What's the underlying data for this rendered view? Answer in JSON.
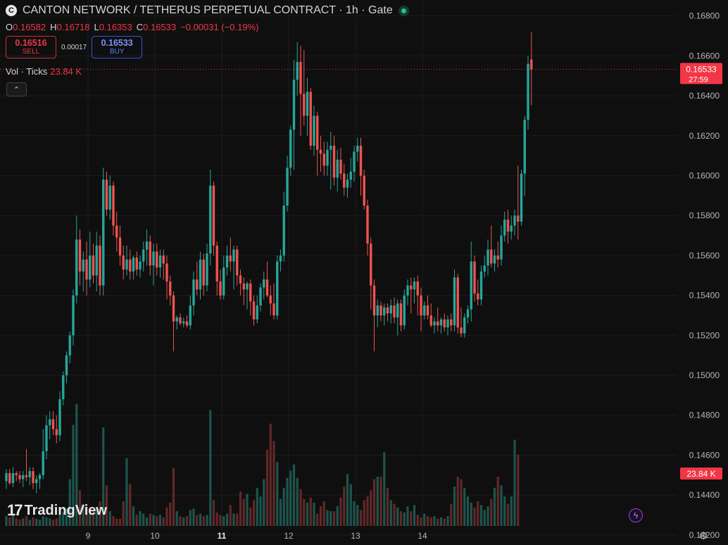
{
  "header": {
    "logo_letter": "C",
    "title": "CANTON NETWORK / TETHERUS PERPETUAL CONTRACT · 1h · Gate"
  },
  "ohlc": {
    "o_label": "O",
    "o": "0.16582",
    "h_label": "H",
    "h": "0.16718",
    "l_label": "L",
    "l": "0.16353",
    "c_label": "C",
    "c": "0.16533",
    "change": "−0.00031 (−0.19%)"
  },
  "trade": {
    "sell_price": "0.16516",
    "sell_label": "SELL",
    "spread": "0.00017",
    "buy_price": "0.16533",
    "buy_label": "BUY"
  },
  "volume_legend": {
    "label": "Vol · Ticks",
    "value": "23.84 K"
  },
  "brand": {
    "name": "TradingView"
  },
  "colors": {
    "up": "#26a69a",
    "down": "#ef5350",
    "background": "#0f0f0f",
    "price_tag": "#f23645",
    "grid": "#1c1c1c"
  },
  "icons": {
    "collapse": "chevron-up-icon",
    "flash": "lightning-icon",
    "settings": "gear-icon"
  },
  "chart_data": {
    "type": "candlestick",
    "title": "CANTON NETWORK / TETHERUS PERPETUAL CONTRACT · 1h · Gate",
    "ylim": [
      0.1415,
      0.1688
    ],
    "y_ticks": [
      "0.16800",
      "0.16600",
      "0.16400",
      "0.16200",
      "0.16000",
      "0.15800",
      "0.15600",
      "0.15400",
      "0.15200",
      "0.15000",
      "0.14800",
      "0.14600",
      "0.14400",
      "0.14200"
    ],
    "x_ticks": [
      {
        "label": "9",
        "index": 16
      },
      {
        "label": "10",
        "index": 36
      },
      {
        "label": "11",
        "index": 56
      },
      {
        "label": "12",
        "index": 76
      },
      {
        "label": "13",
        "index": 96
      },
      {
        "label": "14",
        "index": 116
      }
    ],
    "last_price": "0.16533",
    "countdown": "27:59",
    "volume_label": "23.84 K",
    "candles": [
      {
        "o": 0.1447,
        "h": 0.1453,
        "l": 0.1443,
        "c": 0.1451
      },
      {
        "o": 0.1451,
        "h": 0.1453,
        "l": 0.1445,
        "c": 0.1446
      },
      {
        "o": 0.1446,
        "h": 0.1454,
        "l": 0.1444,
        "c": 0.1451
      },
      {
        "o": 0.1451,
        "h": 0.1452,
        "l": 0.1447,
        "c": 0.145
      },
      {
        "o": 0.145,
        "h": 0.1452,
        "l": 0.1446,
        "c": 0.1448
      },
      {
        "o": 0.1448,
        "h": 0.1452,
        "l": 0.1444,
        "c": 0.145
      },
      {
        "o": 0.145,
        "h": 0.1463,
        "l": 0.1447,
        "c": 0.1449
      },
      {
        "o": 0.1449,
        "h": 0.1454,
        "l": 0.1445,
        "c": 0.1452
      },
      {
        "o": 0.1452,
        "h": 0.1454,
        "l": 0.1443,
        "c": 0.1446
      },
      {
        "o": 0.1446,
        "h": 0.145,
        "l": 0.1441,
        "c": 0.1448
      },
      {
        "o": 0.1448,
        "h": 0.1451,
        "l": 0.1443,
        "c": 0.145
      },
      {
        "o": 0.145,
        "h": 0.1473,
        "l": 0.1448,
        "c": 0.1462
      },
      {
        "o": 0.1462,
        "h": 0.148,
        "l": 0.1458,
        "c": 0.1475
      },
      {
        "o": 0.1475,
        "h": 0.1482,
        "l": 0.1468,
        "c": 0.1478
      },
      {
        "o": 0.1478,
        "h": 0.1482,
        "l": 0.147,
        "c": 0.1473
      },
      {
        "o": 0.1473,
        "h": 0.148,
        "l": 0.1466,
        "c": 0.147
      },
      {
        "o": 0.147,
        "h": 0.1492,
        "l": 0.1467,
        "c": 0.1488
      },
      {
        "o": 0.1488,
        "h": 0.1502,
        "l": 0.1485,
        "c": 0.15
      },
      {
        "o": 0.15,
        "h": 0.1512,
        "l": 0.1496,
        "c": 0.151
      },
      {
        "o": 0.151,
        "h": 0.1522,
        "l": 0.1506,
        "c": 0.152
      },
      {
        "o": 0.152,
        "h": 0.1543,
        "l": 0.1515,
        "c": 0.154
      },
      {
        "o": 0.154,
        "h": 0.158,
        "l": 0.1536,
        "c": 0.1568
      },
      {
        "o": 0.1568,
        "h": 0.1573,
        "l": 0.1545,
        "c": 0.1552
      },
      {
        "o": 0.1552,
        "h": 0.1562,
        "l": 0.1542,
        "c": 0.1558
      },
      {
        "o": 0.1558,
        "h": 0.1567,
        "l": 0.154,
        "c": 0.1548
      },
      {
        "o": 0.1548,
        "h": 0.1572,
        "l": 0.1544,
        "c": 0.156
      },
      {
        "o": 0.156,
        "h": 0.1566,
        "l": 0.1546,
        "c": 0.155
      },
      {
        "o": 0.155,
        "h": 0.1572,
        "l": 0.1542,
        "c": 0.1565
      },
      {
        "o": 0.1565,
        "h": 0.157,
        "l": 0.154,
        "c": 0.1545
      },
      {
        "o": 0.1545,
        "h": 0.1604,
        "l": 0.154,
        "c": 0.1598
      },
      {
        "o": 0.1598,
        "h": 0.1602,
        "l": 0.158,
        "c": 0.1583
      },
      {
        "o": 0.1583,
        "h": 0.16,
        "l": 0.1578,
        "c": 0.1595
      },
      {
        "o": 0.1595,
        "h": 0.1597,
        "l": 0.157,
        "c": 0.1575
      },
      {
        "o": 0.1575,
        "h": 0.1582,
        "l": 0.1562,
        "c": 0.1569
      },
      {
        "o": 0.1569,
        "h": 0.1575,
        "l": 0.1555,
        "c": 0.156
      },
      {
        "o": 0.156,
        "h": 0.1565,
        "l": 0.1548,
        "c": 0.1553
      },
      {
        "o": 0.1553,
        "h": 0.1565,
        "l": 0.155,
        "c": 0.1558
      },
      {
        "o": 0.1558,
        "h": 0.1563,
        "l": 0.1548,
        "c": 0.1552
      },
      {
        "o": 0.1552,
        "h": 0.156,
        "l": 0.1548,
        "c": 0.1559
      },
      {
        "o": 0.1559,
        "h": 0.1562,
        "l": 0.155,
        "c": 0.1553
      },
      {
        "o": 0.1553,
        "h": 0.156,
        "l": 0.1549,
        "c": 0.1557
      },
      {
        "o": 0.1557,
        "h": 0.1567,
        "l": 0.1552,
        "c": 0.1563
      },
      {
        "o": 0.1563,
        "h": 0.1573,
        "l": 0.1555,
        "c": 0.1567
      },
      {
        "o": 0.1567,
        "h": 0.157,
        "l": 0.155,
        "c": 0.1555
      },
      {
        "o": 0.1555,
        "h": 0.1566,
        "l": 0.1545,
        "c": 0.1562
      },
      {
        "o": 0.1562,
        "h": 0.1566,
        "l": 0.155,
        "c": 0.1554
      },
      {
        "o": 0.1554,
        "h": 0.1563,
        "l": 0.1549,
        "c": 0.156
      },
      {
        "o": 0.156,
        "h": 0.1563,
        "l": 0.1548,
        "c": 0.1556
      },
      {
        "o": 0.1556,
        "h": 0.156,
        "l": 0.1538,
        "c": 0.1547
      },
      {
        "o": 0.1547,
        "h": 0.155,
        "l": 0.1535,
        "c": 0.154
      },
      {
        "o": 0.154,
        "h": 0.1542,
        "l": 0.1512,
        "c": 0.1527
      },
      {
        "o": 0.1527,
        "h": 0.153,
        "l": 0.1523,
        "c": 0.1529
      },
      {
        "o": 0.1529,
        "h": 0.1531,
        "l": 0.1525,
        "c": 0.1526
      },
      {
        "o": 0.1526,
        "h": 0.1529,
        "l": 0.1524,
        "c": 0.1527
      },
      {
        "o": 0.1527,
        "h": 0.153,
        "l": 0.1524,
        "c": 0.1525
      },
      {
        "o": 0.1525,
        "h": 0.154,
        "l": 0.1523,
        "c": 0.1535
      },
      {
        "o": 0.1535,
        "h": 0.1552,
        "l": 0.153,
        "c": 0.1548
      },
      {
        "o": 0.1548,
        "h": 0.1557,
        "l": 0.154,
        "c": 0.1543
      },
      {
        "o": 0.1543,
        "h": 0.1562,
        "l": 0.1538,
        "c": 0.1558
      },
      {
        "o": 0.1558,
        "h": 0.1561,
        "l": 0.154,
        "c": 0.1545
      },
      {
        "o": 0.1545,
        "h": 0.1566,
        "l": 0.1542,
        "c": 0.1561
      },
      {
        "o": 0.1561,
        "h": 0.1603,
        "l": 0.1555,
        "c": 0.1595
      },
      {
        "o": 0.1595,
        "h": 0.1597,
        "l": 0.156,
        "c": 0.1565
      },
      {
        "o": 0.1565,
        "h": 0.1567,
        "l": 0.154,
        "c": 0.1547
      },
      {
        "o": 0.1547,
        "h": 0.1553,
        "l": 0.1538,
        "c": 0.154
      },
      {
        "o": 0.154,
        "h": 0.156,
        "l": 0.1538,
        "c": 0.1554
      },
      {
        "o": 0.1554,
        "h": 0.1565,
        "l": 0.155,
        "c": 0.156
      },
      {
        "o": 0.156,
        "h": 0.1569,
        "l": 0.1552,
        "c": 0.1557
      },
      {
        "o": 0.1557,
        "h": 0.1565,
        "l": 0.1543,
        "c": 0.1563
      },
      {
        "o": 0.1563,
        "h": 0.1565,
        "l": 0.1545,
        "c": 0.155
      },
      {
        "o": 0.155,
        "h": 0.1553,
        "l": 0.154,
        "c": 0.1546
      },
      {
        "o": 0.1546,
        "h": 0.1549,
        "l": 0.1535,
        "c": 0.1543
      },
      {
        "o": 0.1543,
        "h": 0.1547,
        "l": 0.1533,
        "c": 0.1546
      },
      {
        "o": 0.1546,
        "h": 0.1548,
        "l": 0.153,
        "c": 0.1537
      },
      {
        "o": 0.1537,
        "h": 0.154,
        "l": 0.1525,
        "c": 0.1528
      },
      {
        "o": 0.1528,
        "h": 0.154,
        "l": 0.1526,
        "c": 0.1535
      },
      {
        "o": 0.1535,
        "h": 0.1546,
        "l": 0.1532,
        "c": 0.1544
      },
      {
        "o": 0.1544,
        "h": 0.1552,
        "l": 0.1538,
        "c": 0.1548
      },
      {
        "o": 0.1548,
        "h": 0.1557,
        "l": 0.1539,
        "c": 0.154
      },
      {
        "o": 0.154,
        "h": 0.1545,
        "l": 0.153,
        "c": 0.1536
      },
      {
        "o": 0.1536,
        "h": 0.1546,
        "l": 0.1528,
        "c": 0.153
      },
      {
        "o": 0.153,
        "h": 0.156,
        "l": 0.1528,
        "c": 0.1557
      },
      {
        "o": 0.1557,
        "h": 0.1563,
        "l": 0.1552,
        "c": 0.156
      },
      {
        "o": 0.156,
        "h": 0.1592,
        "l": 0.1557,
        "c": 0.1585
      },
      {
        "o": 0.1585,
        "h": 0.161,
        "l": 0.1582,
        "c": 0.1604
      },
      {
        "o": 0.1604,
        "h": 0.1625,
        "l": 0.16,
        "c": 0.1623
      },
      {
        "o": 0.1623,
        "h": 0.1658,
        "l": 0.1603,
        "c": 0.1648
      },
      {
        "o": 0.1648,
        "h": 0.1667,
        "l": 0.164,
        "c": 0.1657
      },
      {
        "o": 0.1657,
        "h": 0.1665,
        "l": 0.162,
        "c": 0.1641
      },
      {
        "o": 0.1641,
        "h": 0.1663,
        "l": 0.1625,
        "c": 0.163
      },
      {
        "o": 0.163,
        "h": 0.1649,
        "l": 0.162,
        "c": 0.1642
      },
      {
        "o": 0.1642,
        "h": 0.1644,
        "l": 0.1613,
        "c": 0.1615
      },
      {
        "o": 0.1615,
        "h": 0.1635,
        "l": 0.161,
        "c": 0.163
      },
      {
        "o": 0.163,
        "h": 0.1632,
        "l": 0.16,
        "c": 0.1613
      },
      {
        "o": 0.1613,
        "h": 0.162,
        "l": 0.1602,
        "c": 0.1611
      },
      {
        "o": 0.1611,
        "h": 0.1617,
        "l": 0.16,
        "c": 0.1605
      },
      {
        "o": 0.1605,
        "h": 0.1617,
        "l": 0.16,
        "c": 0.1613
      },
      {
        "o": 0.1613,
        "h": 0.1622,
        "l": 0.1593,
        "c": 0.1615
      },
      {
        "o": 0.1615,
        "h": 0.162,
        "l": 0.1595,
        "c": 0.1599
      },
      {
        "o": 0.1599,
        "h": 0.1613,
        "l": 0.1592,
        "c": 0.1608
      },
      {
        "o": 0.1608,
        "h": 0.1614,
        "l": 0.1598,
        "c": 0.1601
      },
      {
        "o": 0.1601,
        "h": 0.1606,
        "l": 0.159,
        "c": 0.1594
      },
      {
        "o": 0.1594,
        "h": 0.1601,
        "l": 0.1589,
        "c": 0.1598
      },
      {
        "o": 0.1598,
        "h": 0.1609,
        "l": 0.1594,
        "c": 0.1602
      },
      {
        "o": 0.1602,
        "h": 0.1615,
        "l": 0.1597,
        "c": 0.1612
      },
      {
        "o": 0.1612,
        "h": 0.1619,
        "l": 0.1607,
        "c": 0.1615
      },
      {
        "o": 0.1615,
        "h": 0.1619,
        "l": 0.159,
        "c": 0.16
      },
      {
        "o": 0.16,
        "h": 0.1603,
        "l": 0.1583,
        "c": 0.1585
      },
      {
        "o": 0.1585,
        "h": 0.1588,
        "l": 0.156,
        "c": 0.1566
      },
      {
        "o": 0.1566,
        "h": 0.1569,
        "l": 0.1533,
        "c": 0.1545
      },
      {
        "o": 0.1545,
        "h": 0.1548,
        "l": 0.1512,
        "c": 0.153
      },
      {
        "o": 0.153,
        "h": 0.1538,
        "l": 0.1524,
        "c": 0.1535
      },
      {
        "o": 0.1535,
        "h": 0.1537,
        "l": 0.1527,
        "c": 0.153
      },
      {
        "o": 0.153,
        "h": 0.1536,
        "l": 0.1525,
        "c": 0.1534
      },
      {
        "o": 0.1534,
        "h": 0.1536,
        "l": 0.1527,
        "c": 0.1531
      },
      {
        "o": 0.1531,
        "h": 0.1538,
        "l": 0.1526,
        "c": 0.1535
      },
      {
        "o": 0.1535,
        "h": 0.1539,
        "l": 0.1526,
        "c": 0.1529
      },
      {
        "o": 0.1529,
        "h": 0.1538,
        "l": 0.152,
        "c": 0.1536
      },
      {
        "o": 0.1536,
        "h": 0.1538,
        "l": 0.1522,
        "c": 0.1525
      },
      {
        "o": 0.1525,
        "h": 0.1543,
        "l": 0.1523,
        "c": 0.154
      },
      {
        "o": 0.154,
        "h": 0.1548,
        "l": 0.1535,
        "c": 0.1545
      },
      {
        "o": 0.1545,
        "h": 0.1549,
        "l": 0.1531,
        "c": 0.1543
      },
      {
        "o": 0.1543,
        "h": 0.1549,
        "l": 0.1536,
        "c": 0.1547
      },
      {
        "o": 0.1547,
        "h": 0.155,
        "l": 0.153,
        "c": 0.154
      },
      {
        "o": 0.154,
        "h": 0.1544,
        "l": 0.1522,
        "c": 0.153
      },
      {
        "o": 0.153,
        "h": 0.1537,
        "l": 0.1528,
        "c": 0.1535
      },
      {
        "o": 0.1535,
        "h": 0.154,
        "l": 0.1528,
        "c": 0.153
      },
      {
        "o": 0.153,
        "h": 0.1536,
        "l": 0.1524,
        "c": 0.1525
      },
      {
        "o": 0.1525,
        "h": 0.1529,
        "l": 0.1521,
        "c": 0.1527
      },
      {
        "o": 0.1527,
        "h": 0.1534,
        "l": 0.1522,
        "c": 0.1525
      },
      {
        "o": 0.1525,
        "h": 0.1529,
        "l": 0.1521,
        "c": 0.1528
      },
      {
        "o": 0.1528,
        "h": 0.1531,
        "l": 0.1522,
        "c": 0.1524
      },
      {
        "o": 0.1524,
        "h": 0.153,
        "l": 0.152,
        "c": 0.1528
      },
      {
        "o": 0.1528,
        "h": 0.1531,
        "l": 0.1522,
        "c": 0.1525
      },
      {
        "o": 0.1525,
        "h": 0.1553,
        "l": 0.1522,
        "c": 0.1549
      },
      {
        "o": 0.1549,
        "h": 0.1551,
        "l": 0.1521,
        "c": 0.1524
      },
      {
        "o": 0.1524,
        "h": 0.1534,
        "l": 0.1519,
        "c": 0.1521
      },
      {
        "o": 0.1521,
        "h": 0.1531,
        "l": 0.1519,
        "c": 0.1529
      },
      {
        "o": 0.1529,
        "h": 0.1535,
        "l": 0.1526,
        "c": 0.1533
      },
      {
        "o": 0.1533,
        "h": 0.1567,
        "l": 0.1527,
        "c": 0.1557
      },
      {
        "o": 0.1557,
        "h": 0.156,
        "l": 0.1537,
        "c": 0.1541
      },
      {
        "o": 0.1541,
        "h": 0.1548,
        "l": 0.1535,
        "c": 0.1538
      },
      {
        "o": 0.1538,
        "h": 0.1555,
        "l": 0.1535,
        "c": 0.1552
      },
      {
        "o": 0.1552,
        "h": 0.156,
        "l": 0.1549,
        "c": 0.1555
      },
      {
        "o": 0.1555,
        "h": 0.1568,
        "l": 0.155,
        "c": 0.1563
      },
      {
        "o": 0.1563,
        "h": 0.1575,
        "l": 0.1554,
        "c": 0.1556
      },
      {
        "o": 0.1556,
        "h": 0.1563,
        "l": 0.1552,
        "c": 0.156
      },
      {
        "o": 0.156,
        "h": 0.1567,
        "l": 0.1554,
        "c": 0.1558
      },
      {
        "o": 0.1558,
        "h": 0.1575,
        "l": 0.1555,
        "c": 0.157
      },
      {
        "o": 0.157,
        "h": 0.1582,
        "l": 0.1567,
        "c": 0.1578
      },
      {
        "o": 0.1578,
        "h": 0.1583,
        "l": 0.1566,
        "c": 0.1572
      },
      {
        "o": 0.1572,
        "h": 0.158,
        "l": 0.1568,
        "c": 0.1575
      },
      {
        "o": 0.1575,
        "h": 0.1583,
        "l": 0.157,
        "c": 0.158
      },
      {
        "o": 0.158,
        "h": 0.1605,
        "l": 0.1568,
        "c": 0.1577
      },
      {
        "o": 0.1577,
        "h": 0.1603,
        "l": 0.1575,
        "c": 0.1601
      },
      {
        "o": 0.1601,
        "h": 0.163,
        "l": 0.159,
        "c": 0.1628
      },
      {
        "o": 0.1628,
        "h": 0.166,
        "l": 0.1623,
        "c": 0.1656
      },
      {
        "o": 0.16582,
        "h": 0.16718,
        "l": 0.16353,
        "c": 0.16533
      }
    ],
    "volume": [
      0.8,
      0.7,
      0.9,
      0.6,
      0.5,
      0.6,
      0.8,
      0.5,
      0.7,
      0.6,
      0.5,
      0.8,
      0.7,
      0.6,
      0.5,
      0.6,
      0.9,
      1.1,
      1.4,
      3.8,
      8.2,
      9.9,
      2.9,
      1.8,
      1.6,
      1.2,
      1.3,
      1.5,
      2.0,
      8.0,
      3.3,
      1.2,
      0.8,
      0.6,
      0.6,
      2.0,
      5.5,
      3.4,
      1.6,
      0.9,
      1.2,
      1.0,
      0.7,
      1.0,
      0.9,
      0.8,
      0.9,
      0.7,
      1.5,
      1.9,
      4.7,
      1.2,
      0.8,
      0.7,
      0.8,
      1.3,
      1.4,
      0.9,
      1.0,
      0.8,
      0.9,
      9.4,
      2.1,
      1.1,
      0.9,
      0.8,
      1.0,
      1.7,
      1.0,
      1.0,
      2.8,
      2.2,
      2.6,
      1.5,
      2.1,
      3.1,
      2.4,
      3.8,
      6.2,
      8.3,
      6.9,
      5.2,
      2.2,
      3.1,
      3.9,
      4.5,
      5.0,
      3.9,
      3.0,
      2.2,
      1.9,
      2.3,
      1.9,
      1.0,
      1.6,
      2.0,
      1.3,
      1.2,
      1.2,
      1.6,
      2.3,
      3.2,
      4.2,
      3.4,
      2.0,
      1.7,
      1.3,
      2.1,
      2.4,
      2.9,
      3.8,
      4.0,
      4.0,
      6.0,
      3.1,
      2.1,
      1.8,
      1.5,
      1.2,
      1.1,
      1.6,
      1.2,
      1.7,
      0.9,
      0.7,
      1.0,
      0.8,
      0.7,
      0.8,
      0.6,
      0.7,
      0.6,
      0.8,
      1.8,
      3.2,
      4.0,
      3.8,
      3.1,
      2.4,
      1.9,
      1.5,
      2.0,
      1.7,
      1.3,
      1.6,
      2.2,
      3.1,
      4.0,
      3.3,
      2.4,
      1.8,
      2.4,
      7.0,
      5.8
    ]
  }
}
